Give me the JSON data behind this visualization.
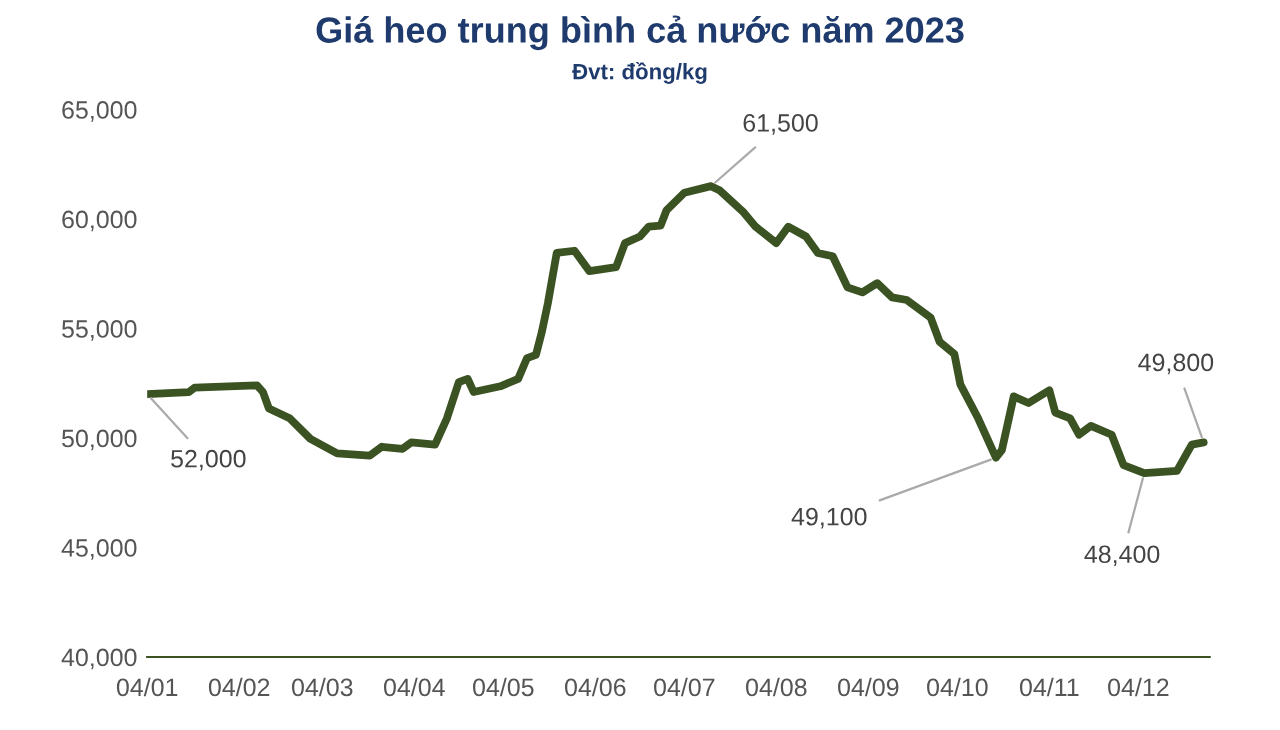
{
  "chart_data": {
    "type": "line",
    "title": "Giá heo trung bình cả nước năm 2023",
    "subtitle": "Đvt: đồng/kg",
    "x": [
      "2023-01-04",
      "2023-01-18",
      "2023-01-20",
      "2023-02-10",
      "2023-02-12",
      "2023-02-14",
      "2023-02-21",
      "2023-02-28",
      "2023-03-09",
      "2023-03-20",
      "2023-03-24",
      "2023-03-31",
      "2023-04-03",
      "2023-04-11",
      "2023-04-15",
      "2023-04-19",
      "2023-04-22",
      "2023-04-24",
      "2023-05-03",
      "2023-05-09",
      "2023-05-12",
      "2023-05-15",
      "2023-05-17",
      "2023-05-19",
      "2023-05-22",
      "2023-05-28",
      "2023-06-02",
      "2023-06-11",
      "2023-06-14",
      "2023-06-19",
      "2023-06-22",
      "2023-06-26",
      "2023-06-28",
      "2023-07-04",
      "2023-07-13",
      "2023-07-16",
      "2023-07-24",
      "2023-07-28",
      "2023-08-04",
      "2023-08-08",
      "2023-08-14",
      "2023-08-18",
      "2023-08-23",
      "2023-08-28",
      "2023-09-02",
      "2023-09-07",
      "2023-09-12",
      "2023-09-17",
      "2023-09-25",
      "2023-09-28",
      "2023-10-03",
      "2023-10-05",
      "2023-10-11",
      "2023-10-17",
      "2023-10-19",
      "2023-10-23",
      "2023-10-28",
      "2023-11-04",
      "2023-11-06",
      "2023-11-11",
      "2023-11-14",
      "2023-11-18",
      "2023-11-25",
      "2023-11-29",
      "2023-12-06",
      "2023-12-17",
      "2023-12-22",
      "2023-12-26"
    ],
    "series": [
      {
        "color": "#3b5323",
        "values": [
          52000,
          52100,
          52300,
          52400,
          52100,
          51350,
          50900,
          49960,
          49300,
          49200,
          49600,
          49500,
          49800,
          49700,
          50900,
          52550,
          52700,
          52100,
          52360,
          52700,
          53650,
          53800,
          54850,
          56140,
          58450,
          58550,
          57620,
          57800,
          58900,
          59200,
          59650,
          59700,
          60400,
          61200,
          61500,
          61300,
          60300,
          59650,
          58900,
          59650,
          59200,
          58450,
          58300,
          56880,
          56650,
          57070,
          56420,
          56300,
          55500,
          54400,
          53840,
          52450,
          50900,
          49100,
          49450,
          51900,
          51600,
          52180,
          51160,
          50900,
          50150,
          50550,
          50150,
          48760,
          48400,
          48500,
          49700,
          49800
        ]
      }
    ],
    "xlim": [
      "2023-01-04",
      "2023-12-28"
    ],
    "xticks": [
      {
        "value": "2023-01-04",
        "label": "04/01"
      },
      {
        "value": "2023-02-04",
        "label": "04/02"
      },
      {
        "value": "2023-03-04",
        "label": "04/03"
      },
      {
        "value": "2023-04-04",
        "label": "04/04"
      },
      {
        "value": "2023-05-04",
        "label": "04/05"
      },
      {
        "value": "2023-06-04",
        "label": "04/06"
      },
      {
        "value": "2023-07-04",
        "label": "04/07"
      },
      {
        "value": "2023-08-04",
        "label": "04/08"
      },
      {
        "value": "2023-09-04",
        "label": "04/09"
      },
      {
        "value": "2023-10-04",
        "label": "04/10"
      },
      {
        "value": "2023-11-04",
        "label": "04/11"
      },
      {
        "value": "2023-12-04",
        "label": "04/12"
      }
    ],
    "ylim": [
      40000,
      65000
    ],
    "yticks": [
      {
        "value": 40000,
        "label": "40,000"
      },
      {
        "value": 45000,
        "label": "45,000"
      },
      {
        "value": 50000,
        "label": "50,000"
      },
      {
        "value": 55000,
        "label": "55,000"
      },
      {
        "value": 60000,
        "label": "60,000"
      },
      {
        "value": 65000,
        "label": "65,000"
      }
    ],
    "grid": false,
    "marker": "none",
    "line_style": "solid",
    "annotations": [
      {
        "text": "52,000",
        "x": "2023-01-04",
        "y": 52000
      },
      {
        "text": "61,500",
        "x": "2023-07-13",
        "y": 61500
      },
      {
        "text": "49,100",
        "x": "2023-10-17",
        "y": 49100
      },
      {
        "text": "48,400",
        "x": "2023-12-06",
        "y": 48400
      },
      {
        "text": "49,800",
        "x": "2023-12-26",
        "y": 49800
      }
    ]
  }
}
